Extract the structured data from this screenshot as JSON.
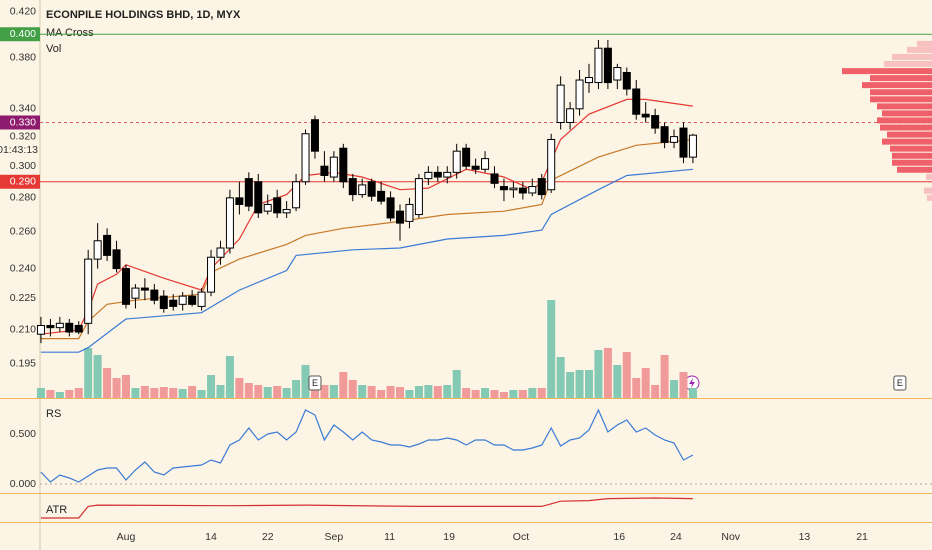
{
  "chart_data": {
    "type": "candlestick",
    "title": "ECONPILE HOLDINGS BHD, 1D, MYX",
    "indicators": [
      "MA Cross",
      "Vol"
    ],
    "log_scale": true,
    "xlim": [
      -0.1,
      94.3
    ],
    "ylim": [
      0.181,
      0.431
    ],
    "yticks": [
      {
        "value": 0.42,
        "label": "0.420"
      },
      {
        "value": 0.38,
        "label": "0.380"
      },
      {
        "value": 0.34,
        "label": "0.340"
      },
      {
        "value": 0.32,
        "label": "0.320"
      },
      {
        "value": 0.3,
        "label": "0.300"
      },
      {
        "value": 0.28,
        "label": "0.280"
      },
      {
        "value": 0.26,
        "label": "0.260"
      },
      {
        "value": 0.24,
        "label": "0.240"
      },
      0.225,
      {
        "value": 0.21,
        "label": "0.210"
      },
      0.195
    ],
    "xticks": [
      {
        "value": 9.0,
        "label": "Aug"
      },
      {
        "value": 18.0,
        "label": "14"
      },
      {
        "value": 24.0,
        "label": "22"
      },
      {
        "value": 31.0,
        "label": "Sep"
      },
      {
        "value": 36.9,
        "label": "11"
      },
      {
        "value": 43.2,
        "label": "19"
      },
      {
        "value": 50.8,
        "label": "Oct"
      },
      {
        "value": 61.2,
        "label": "16"
      },
      {
        "value": 67.2,
        "label": "24"
      },
      {
        "value": 73.0,
        "label": "Nov"
      },
      {
        "value": 80.8,
        "label": "13"
      },
      {
        "value": 86.9,
        "label": "21"
      }
    ],
    "candles": {
      "open": [
        0.208,
        0.212,
        0.211,
        0.213,
        0.212,
        0.213,
        0.245,
        0.258,
        0.25,
        0.24,
        0.225,
        0.23,
        0.229,
        0.226,
        0.224,
        0.222,
        0.226,
        0.221,
        0.228,
        0.246,
        0.251,
        0.28,
        0.292,
        0.29,
        0.272,
        0.28,
        0.271,
        0.274,
        0.29,
        0.332,
        0.3,
        0.293,
        0.312,
        0.292,
        0.282,
        0.29,
        0.284,
        0.28,
        0.272,
        0.266,
        0.27,
        0.292,
        0.296,
        0.293,
        0.296,
        0.312,
        0.3,
        0.298,
        0.295,
        0.287,
        0.285,
        0.286,
        0.283,
        0.292,
        0.285,
        0.33,
        0.33,
        0.34,
        0.36,
        0.36,
        0.388,
        0.362,
        0.368,
        0.355,
        0.336,
        0.335,
        0.327,
        0.316,
        0.326,
        0.306
      ],
      "high": [
        0.216,
        0.215,
        0.216,
        0.215,
        0.214,
        0.25,
        0.265,
        0.262,
        0.255,
        0.242,
        0.232,
        0.235,
        0.232,
        0.229,
        0.227,
        0.228,
        0.229,
        0.23,
        0.25,
        0.255,
        0.285,
        0.29,
        0.296,
        0.295,
        0.282,
        0.285,
        0.278,
        0.295,
        0.325,
        0.335,
        0.31,
        0.31,
        0.315,
        0.295,
        0.292,
        0.292,
        0.29,
        0.284,
        0.276,
        0.28,
        0.295,
        0.3,
        0.3,
        0.3,
        0.315,
        0.315,
        0.305,
        0.31,
        0.3,
        0.292,
        0.29,
        0.29,
        0.292,
        0.295,
        0.322,
        0.365,
        0.345,
        0.37,
        0.375,
        0.395,
        0.395,
        0.375,
        0.372,
        0.362,
        0.345,
        0.34,
        0.33,
        0.325,
        0.33,
        0.322
      ],
      "low": [
        0.204,
        0.207,
        0.209,
        0.207,
        0.208,
        0.208,
        0.24,
        0.244,
        0.238,
        0.22,
        0.22,
        0.224,
        0.222,
        0.218,
        0.219,
        0.219,
        0.221,
        0.219,
        0.226,
        0.242,
        0.248,
        0.27,
        0.272,
        0.268,
        0.27,
        0.268,
        0.268,
        0.272,
        0.288,
        0.305,
        0.29,
        0.29,
        0.286,
        0.278,
        0.28,
        0.278,
        0.276,
        0.266,
        0.255,
        0.262,
        0.268,
        0.288,
        0.29,
        0.289,
        0.292,
        0.298,
        0.295,
        0.296,
        0.286,
        0.278,
        0.28,
        0.279,
        0.281,
        0.279,
        0.283,
        0.325,
        0.325,
        0.335,
        0.352,
        0.355,
        0.355,
        0.355,
        0.35,
        0.332,
        0.33,
        0.322,
        0.312,
        0.312,
        0.302,
        0.302
      ],
      "close": [
        0.212,
        0.211,
        0.213,
        0.209,
        0.209,
        0.245,
        0.255,
        0.247,
        0.24,
        0.222,
        0.23,
        0.229,
        0.224,
        0.22,
        0.221,
        0.226,
        0.222,
        0.228,
        0.246,
        0.251,
        0.28,
        0.276,
        0.275,
        0.271,
        0.276,
        0.271,
        0.273,
        0.29,
        0.322,
        0.31,
        0.294,
        0.306,
        0.29,
        0.282,
        0.288,
        0.281,
        0.278,
        0.268,
        0.265,
        0.276,
        0.292,
        0.296,
        0.293,
        0.296,
        0.31,
        0.3,
        0.298,
        0.305,
        0.289,
        0.285,
        0.286,
        0.283,
        0.287,
        0.282,
        0.318,
        0.358,
        0.34,
        0.362,
        0.364,
        0.388,
        0.36,
        0.372,
        0.355,
        0.336,
        0.334,
        0.326,
        0.316,
        0.32,
        0.306,
        0.321
      ]
    },
    "up_color": "#ffffff",
    "down_color": "#000000",
    "ma": [
      {
        "color": "#e53935",
        "x": [
          0,
          4,
          5,
          6,
          8,
          9,
          13,
          17,
          18,
          21,
          23,
          26,
          28,
          31,
          34,
          38,
          41,
          45,
          49,
          52,
          53,
          55,
          58,
          62,
          64,
          69
        ],
        "values": [
          0.208,
          0.21,
          0.219,
          0.232,
          0.237,
          0.242,
          0.235,
          0.229,
          0.24,
          0.256,
          0.276,
          0.282,
          0.294,
          0.296,
          0.293,
          0.285,
          0.286,
          0.298,
          0.293,
          0.285,
          0.29,
          0.318,
          0.336,
          0.347,
          0.347,
          0.342
        ]
      },
      {
        "color": "#c87a2a",
        "x": [
          0,
          4,
          5,
          7,
          10,
          17,
          18,
          21,
          26,
          28,
          32,
          38,
          43,
          49,
          53,
          54,
          59,
          63,
          69
        ],
        "values": [
          0.206,
          0.206,
          0.214,
          0.222,
          0.224,
          0.227,
          0.238,
          0.245,
          0.253,
          0.258,
          0.262,
          0.266,
          0.27,
          0.272,
          0.276,
          0.291,
          0.306,
          0.314,
          0.318
        ]
      },
      {
        "color": "#3a7bd5",
        "x": [
          0,
          4,
          5,
          9,
          17,
          21,
          26,
          27,
          33,
          38,
          43,
          49,
          53,
          54,
          59,
          62,
          69
        ],
        "values": [
          0.2,
          0.2,
          0.202,
          0.215,
          0.218,
          0.229,
          0.239,
          0.247,
          0.25,
          0.251,
          0.256,
          0.258,
          0.261,
          0.27,
          0.285,
          0.294,
          0.298
        ]
      }
    ],
    "volume": {
      "values": [
        10,
        8,
        6,
        8,
        10,
        50,
        43,
        30,
        20,
        23,
        10,
        12,
        10,
        11,
        10,
        9,
        12,
        8,
        23,
        13,
        42,
        20,
        15,
        13,
        11,
        12,
        10,
        18,
        33,
        20,
        13,
        13,
        26,
        18,
        13,
        12,
        8,
        12,
        11,
        8,
        12,
        13,
        12,
        13,
        28,
        10,
        8,
        10,
        8,
        6,
        8,
        8,
        10,
        10,
        98,
        41,
        26,
        28,
        28,
        48,
        50,
        33,
        46,
        20,
        30,
        13,
        43,
        18,
        26,
        10
      ],
      "up_color": "#84c9b4",
      "down_color": "#f09a9a"
    },
    "price_lines": [
      {
        "value": 0.4,
        "label": "0.400",
        "color": "#43a047",
        "line_color": "#43a047",
        "dashed": false
      },
      {
        "value": 0.33,
        "label": "0.330",
        "color": "#8e1b6e",
        "line_color": "#e05a5a",
        "dashed": true
      },
      {
        "value": 0.29,
        "label": "0.290",
        "color": "#e53935",
        "line_color": "#e53935",
        "dashed": false
      }
    ],
    "countdown": "01:43:13",
    "volume_profile": {
      "prices": [
        0.3917,
        0.3866,
        0.3807,
        0.3749,
        0.3691,
        0.3635,
        0.358,
        0.3525,
        0.3471,
        0.3418,
        0.3366,
        0.3315,
        0.3264,
        0.3214,
        0.3165,
        0.3117,
        0.3069,
        0.3023,
        0.2977,
        0.2931,
        0.2844,
        0.28
      ],
      "values": [
        15,
        25,
        40,
        48,
        90,
        62,
        70,
        62,
        62,
        55,
        50,
        55,
        52,
        45,
        50,
        42,
        40,
        40,
        35,
        6,
        8,
        5
      ],
      "colors": [
        "#f7c1c1",
        "#f7c1c1",
        "#f7c1c1",
        "#f7c1c1",
        "#f0606a",
        "#f0606a",
        "#f0606a",
        "#f0606a",
        "#f0606a",
        "#f0606a",
        "#f0606a",
        "#f0606a",
        "#f0606a",
        "#f0606a",
        "#f0606a",
        "#f0606a",
        "#f0606a",
        "#f0606a",
        "#f0606a",
        "#f7c1c1",
        "#f7c1c1",
        "#f7c1c1"
      ]
    },
    "events": [
      {
        "x": 29,
        "label": "E"
      },
      {
        "x": 90.9,
        "label": "E"
      }
    ],
    "rs": {
      "label": "RS",
      "color": "#3a7bd5",
      "ylim": [
        -0.09,
        0.86
      ],
      "yticks": [
        {
          "value": 0.5,
          "label": "0.500"
        },
        {
          "value": 0,
          "label": "0.000"
        }
      ],
      "values": [
        0.12,
        0.02,
        0.09,
        0.06,
        0.02,
        0.08,
        0.14,
        0.16,
        0.16,
        0.04,
        0.14,
        0.22,
        0.12,
        0.09,
        0.16,
        0.17,
        0.18,
        0.19,
        0.24,
        0.21,
        0.39,
        0.44,
        0.56,
        0.44,
        0.5,
        0.52,
        0.44,
        0.52,
        0.74,
        0.69,
        0.44,
        0.59,
        0.52,
        0.44,
        0.52,
        0.44,
        0.42,
        0.39,
        0.39,
        0.37,
        0.4,
        0.44,
        0.44,
        0.46,
        0.44,
        0.39,
        0.44,
        0.44,
        0.39,
        0.39,
        0.34,
        0.34,
        0.36,
        0.39,
        0.56,
        0.38,
        0.44,
        0.46,
        0.54,
        0.74,
        0.52,
        0.59,
        0.64,
        0.52,
        0.56,
        0.49,
        0.44,
        0.41,
        0.24,
        0.29
      ]
    },
    "atr": {
      "label": "ATR",
      "color": "#d32f2f",
      "x": [
        0,
        4,
        5,
        6,
        20,
        28,
        40,
        53,
        54,
        55,
        58,
        60,
        65,
        69
      ],
      "values": [
        0.006,
        0.006,
        0.015,
        0.016,
        0.0155,
        0.016,
        0.015,
        0.015,
        0.017,
        0.019,
        0.0195,
        0.021,
        0.0215,
        0.021
      ]
    }
  }
}
